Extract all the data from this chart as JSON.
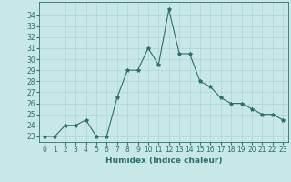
{
  "x": [
    0,
    1,
    2,
    3,
    4,
    5,
    6,
    7,
    8,
    9,
    10,
    11,
    12,
    13,
    14,
    15,
    16,
    17,
    18,
    19,
    20,
    21,
    22,
    23
  ],
  "y": [
    23,
    23,
    24,
    24,
    24.5,
    23,
    23,
    26.5,
    29,
    29,
    31,
    29.5,
    34.5,
    30.5,
    30.5,
    28,
    27.5,
    26.5,
    26,
    26,
    25.5,
    25,
    25,
    24.5
  ],
  "xlabel": "Humidex (Indice chaleur)",
  "xlim": [
    -0.5,
    23.5
  ],
  "ylim": [
    22.5,
    35.2
  ],
  "yticks": [
    23,
    24,
    25,
    26,
    27,
    28,
    29,
    30,
    31,
    32,
    33,
    34
  ],
  "xticks": [
    0,
    1,
    2,
    3,
    4,
    5,
    6,
    7,
    8,
    9,
    10,
    11,
    12,
    13,
    14,
    15,
    16,
    17,
    18,
    19,
    20,
    21,
    22,
    23
  ],
  "line_color": "#2e6e6e",
  "marker": "*",
  "bg_color": "#c8e8e8",
  "grid_color": "#aed4d4",
  "xlabel_fontsize": 6.5,
  "tick_fontsize": 5.5
}
